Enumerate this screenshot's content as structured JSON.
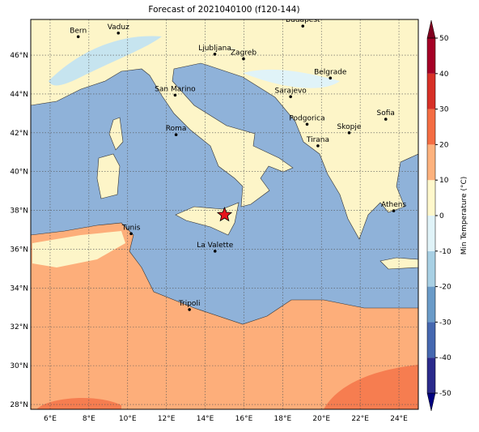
{
  "title": "Forecast of 2021040100 (f120-144)",
  "map": {
    "lonlim": [
      5,
      25
    ],
    "latlim": [
      27.75,
      47.84
    ],
    "xticks": [
      {
        "value": 6,
        "label": "6°E"
      },
      {
        "value": 8,
        "label": "8°E"
      },
      {
        "value": 10,
        "label": "10°E"
      },
      {
        "value": 12,
        "label": "12°E"
      },
      {
        "value": 14,
        "label": "14°E"
      },
      {
        "value": 16,
        "label": "16°E"
      },
      {
        "value": 18,
        "label": "18°E"
      },
      {
        "value": 20,
        "label": "20°E"
      },
      {
        "value": 22,
        "label": "22°E"
      },
      {
        "value": 24,
        "label": "24°E"
      }
    ],
    "yticks": [
      {
        "value": 28,
        "label": "28°N"
      },
      {
        "value": 30,
        "label": "30°N"
      },
      {
        "value": 32,
        "label": "32°N"
      },
      {
        "value": 34,
        "label": "34°N"
      },
      {
        "value": 36,
        "label": "36°N"
      },
      {
        "value": 38,
        "label": "38°N"
      },
      {
        "value": 40,
        "label": "40°N"
      },
      {
        "value": 42,
        "label": "42°N"
      },
      {
        "value": 44,
        "label": "44°N"
      },
      {
        "value": 46,
        "label": "46°N"
      }
    ],
    "cities": [
      {
        "name": "Bern",
        "lon": 7.45,
        "lat": 46.95
      },
      {
        "name": "Vaduz",
        "lon": 9.52,
        "lat": 47.14
      },
      {
        "name": "Budapest",
        "lon": 19.04,
        "lat": 47.5
      },
      {
        "name": "Ljubljana",
        "lon": 14.5,
        "lat": 46.05
      },
      {
        "name": "Zagreb",
        "lon": 15.98,
        "lat": 45.81
      },
      {
        "name": "Belgrade",
        "lon": 20.46,
        "lat": 44.82
      },
      {
        "name": "San Marino",
        "lon": 12.45,
        "lat": 43.94
      },
      {
        "name": "Sarajevo",
        "lon": 18.41,
        "lat": 43.86
      },
      {
        "name": "Sofia",
        "lon": 23.32,
        "lat": 42.7
      },
      {
        "name": "Roma",
        "lon": 12.5,
        "lat": 41.9
      },
      {
        "name": "Podgorica",
        "lon": 19.26,
        "lat": 42.44
      },
      {
        "name": "Skopje",
        "lon": 21.43,
        "lat": 42.0
      },
      {
        "name": "Tirana",
        "lon": 19.82,
        "lat": 41.33
      },
      {
        "name": "Athens",
        "lon": 23.73,
        "lat": 37.98
      },
      {
        "name": "Tunis",
        "lon": 10.18,
        "lat": 36.8
      },
      {
        "name": "La Valette",
        "lon": 14.51,
        "lat": 35.9
      },
      {
        "name": "Tripoli",
        "lon": 13.19,
        "lat": 32.89
      }
    ],
    "marker": {
      "lon": 15.0,
      "lat": 37.77,
      "color": "#e8141c"
    }
  },
  "colorbar": {
    "label": "Min Temperature (°C)",
    "lim": [
      -50,
      50
    ],
    "ticks": [
      -50,
      -40,
      -30,
      -20,
      -10,
      0,
      10,
      20,
      30,
      40,
      50
    ],
    "colors": [
      "#000080",
      "#2a2a8c",
      "#4568b0",
      "#6a9bc8",
      "#a8d0e4",
      "#e0f3f8",
      "#fff8cc",
      "#fdb27e",
      "#f46d43",
      "#d73027",
      "#a50026",
      "#800020"
    ]
  }
}
